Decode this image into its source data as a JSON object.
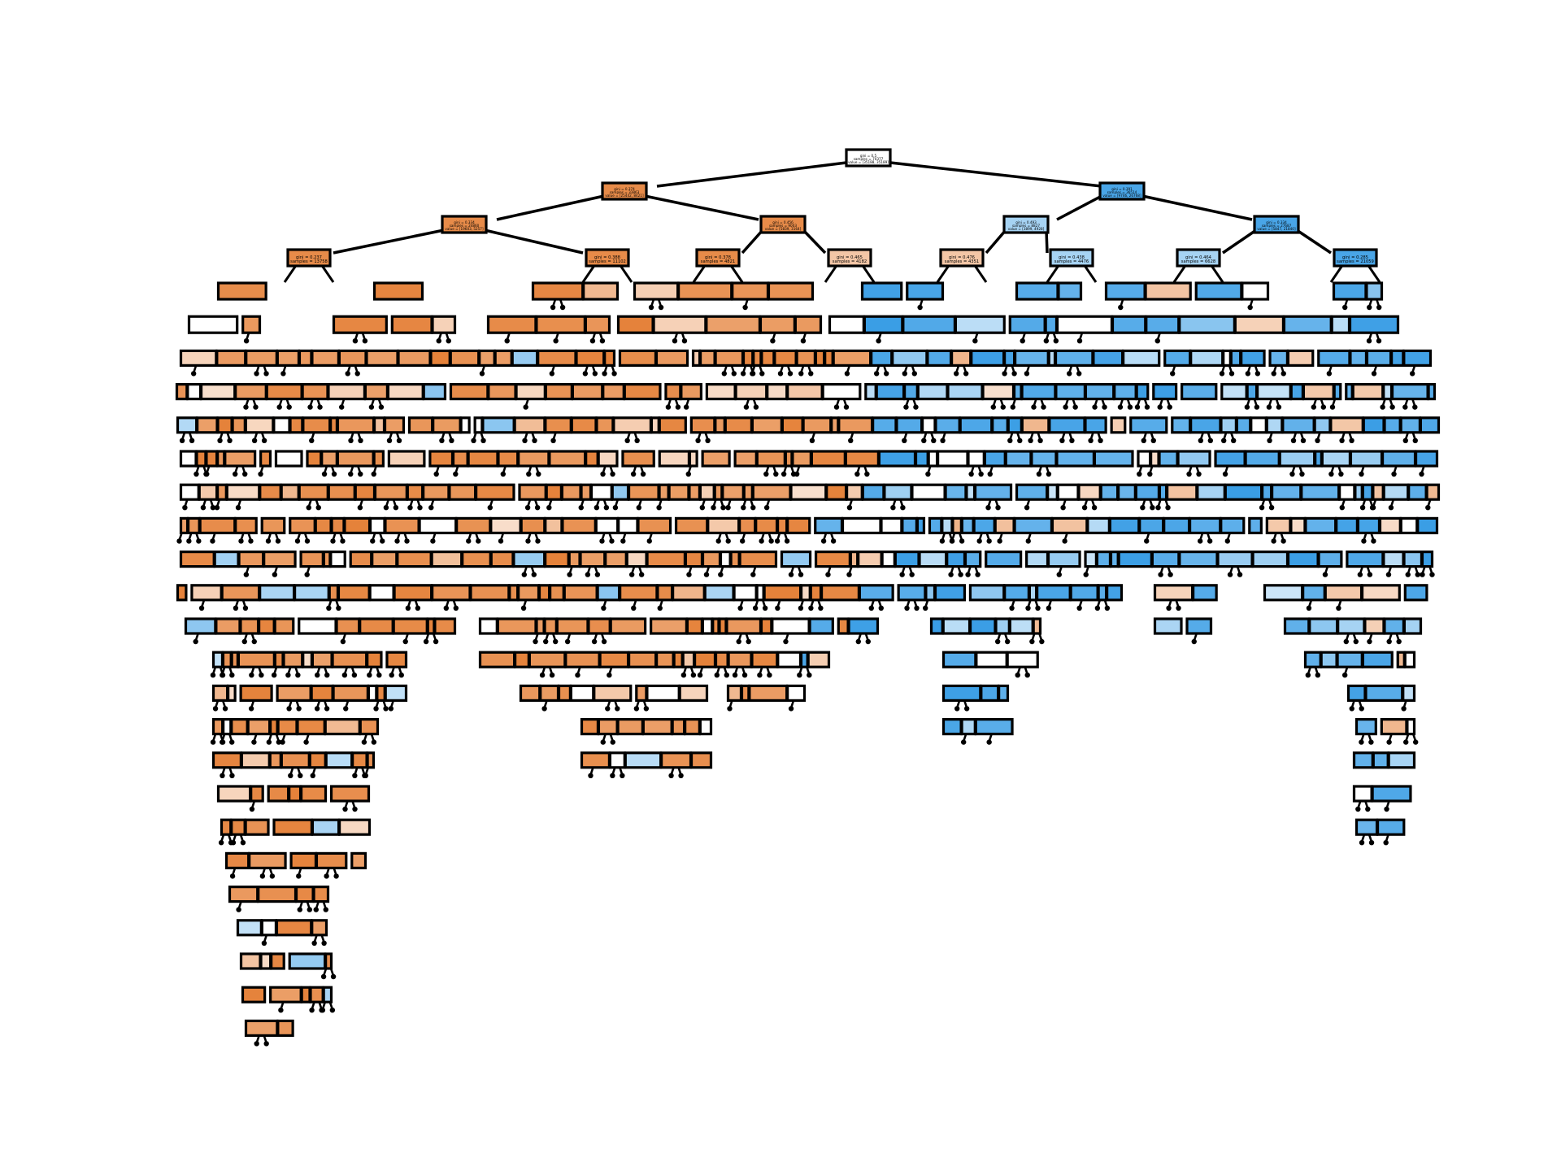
{
  "figure": {
    "type": "decision-tree-plot",
    "root": {
      "lines": [
        "",
        "gini = 0.5",
        "samples = 70377",
        "value = [35188, 35189]"
      ],
      "class": "neutral"
    },
    "level1": [
      {
        "lines": [
          "",
          "gini = 0.374",
          "samples = 33863",
          "value = [25442, 8421]"
        ],
        "class": "orange"
      },
      {
        "lines": [
          "",
          "gini = 0.391",
          "samples = 36514",
          "value = [9746, 26768]"
        ],
        "class": "blue"
      }
    ],
    "level2": [
      {
        "lines": [
          "",
          "gini = 0.334",
          "samples = 24860",
          "value = [19603, 5257]"
        ],
        "class": "orange"
      },
      {
        "lines": [
          "",
          "gini = 0.456",
          "samples = 9003",
          "value = [5839, 3164]"
        ],
        "class": "orange"
      },
      {
        "lines": [
          "",
          "gini = 0.493",
          "samples = 8827",
          "value = [3899, 4928]"
        ],
        "class": "light-blue"
      },
      {
        "lines": [
          "",
          "gini = 0.334",
          "samples = 27687",
          "value = [5847, 21840]"
        ],
        "class": "blue"
      }
    ],
    "level3": [
      {
        "lines": [
          "",
          "gini = 0.237",
          "samples = 13758"
        ],
        "class": "orange"
      },
      {
        "lines": [
          "",
          "gini = 0.388",
          "samples = 11102"
        ],
        "class": "orange"
      },
      {
        "lines": [
          "",
          "gini = 0.378",
          "samples = 4821"
        ],
        "class": "orange"
      },
      {
        "lines": [
          "",
          "gini = 0.465",
          "samples = 4182"
        ],
        "class": "light-orange"
      },
      {
        "lines": [
          "",
          "gini = 0.476",
          "samples = 4351"
        ],
        "class": "light-orange"
      },
      {
        "lines": [
          "",
          "gini = 0.438",
          "samples = 4476"
        ],
        "class": "light-blue"
      },
      {
        "lines": [
          "",
          "gini = 0.464",
          "samples = 6628"
        ],
        "class": "light-blue"
      },
      {
        "lines": [
          "",
          "gini = 0.285",
          "samples = 21059"
        ],
        "class": "blue"
      }
    ],
    "deep_levels": 27,
    "palette": {
      "orange": "#e58139",
      "blue": "#399de5",
      "neutral": "#ffffff",
      "edge": "#000000"
    }
  }
}
